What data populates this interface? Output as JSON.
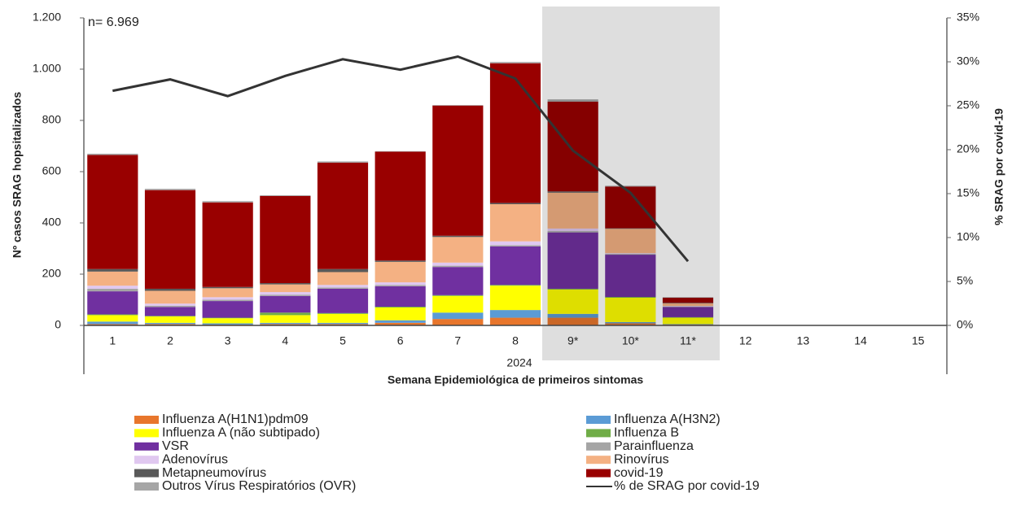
{
  "chart_data": {
    "type": "bar",
    "annotation": "n= 6.969",
    "categories": [
      "1",
      "2",
      "3",
      "4",
      "5",
      "6",
      "7",
      "8",
      "9*",
      "10*",
      "11*",
      "12",
      "13",
      "14",
      "15"
    ],
    "x_group_label": "2024",
    "x_label": "Semana Epidemiológica de primeiros sintomas",
    "y_label": "Nº casos SRAG hopsitalizados",
    "y2_label": "% SRAG por covid-19",
    "ylim": [
      0,
      1200
    ],
    "yticks": [
      0,
      200,
      400,
      600,
      800,
      {
        "value": 1000,
        "label": "1.000"
      },
      {
        "value": 1200,
        "label": "1.200"
      }
    ],
    "y2lim": [
      0,
      35
    ],
    "y2ticks": [
      {
        "value": 0,
        "label": "0%"
      },
      {
        "value": 5,
        "label": "5%"
      },
      {
        "value": 10,
        "label": "10%"
      },
      {
        "value": 15,
        "label": "15%"
      },
      {
        "value": 20,
        "label": "20%"
      },
      {
        "value": 25,
        "label": "25%"
      },
      {
        "value": 30,
        "label": "30%"
      },
      {
        "value": 35,
        "label": "35%"
      }
    ],
    "stacked": true,
    "series": [
      {
        "name": "Influenza A(H1N1)pdm09",
        "color": "#e8762c",
        "values": [
          5,
          5,
          3,
          5,
          5,
          10,
          25,
          30,
          30,
          8,
          3,
          null,
          null,
          null,
          null
        ]
      },
      {
        "name": "Influenza A(H3N2)",
        "color": "#5b9bd5",
        "values": [
          10,
          5,
          5,
          5,
          5,
          10,
          25,
          30,
          15,
          5,
          2,
          null,
          null,
          null,
          null
        ]
      },
      {
        "name": "Influenza A (não subtipado)",
        "color": "#ffff00",
        "values": [
          25,
          25,
          20,
          30,
          35,
          50,
          65,
          95,
          95,
          95,
          25,
          null,
          null,
          null,
          null
        ]
      },
      {
        "name": "Influenza B",
        "color": "#70ad47",
        "values": [
          3,
          2,
          2,
          10,
          3,
          3,
          3,
          3,
          3,
          3,
          2,
          null,
          null,
          null,
          null
        ]
      },
      {
        "name": "VSR",
        "color": "#7030a0",
        "values": [
          90,
          35,
          65,
          65,
          95,
          80,
          110,
          150,
          220,
          165,
          40,
          null,
          null,
          null,
          null
        ]
      },
      {
        "name": "Parainfluenza",
        "color": "#a5a5a5",
        "values": [
          10,
          5,
          5,
          5,
          5,
          5,
          5,
          5,
          5,
          3,
          2,
          null,
          null,
          null,
          null
        ]
      },
      {
        "name": "Adenovírus",
        "color": "#e0c8f0",
        "values": [
          12,
          8,
          10,
          10,
          10,
          10,
          12,
          15,
          10,
          3,
          2,
          null,
          null,
          null,
          null
        ]
      },
      {
        "name": "Rinovírus",
        "color": "#f4b183",
        "values": [
          55,
          50,
          35,
          30,
          50,
          80,
          100,
          145,
          140,
          95,
          10,
          null,
          null,
          null,
          null
        ]
      },
      {
        "name": "Metapneumovírus",
        "color": "#595959",
        "values": [
          10,
          8,
          5,
          5,
          12,
          5,
          5,
          5,
          5,
          2,
          2,
          null,
          null,
          null,
          null
        ]
      },
      {
        "name": "covid-19",
        "color": "#990000",
        "values": [
          445,
          385,
          330,
          340,
          415,
          425,
          508,
          545,
          350,
          163,
          20,
          null,
          null,
          null,
          null
        ]
      },
      {
        "name": "Outros Vírus Respiratórios (OVR)",
        "color": "#a6a6a6",
        "values": [
          5,
          5,
          5,
          3,
          5,
          2,
          2,
          5,
          9,
          3,
          2,
          null,
          null,
          null,
          null
        ]
      },
      {
        "name": "% de SRAG por covid-19",
        "type": "line",
        "axis": "y2",
        "color": "#333333",
        "values": [
          26.7,
          28.0,
          26.1,
          28.4,
          30.3,
          29.1,
          30.6,
          28.1,
          19.9,
          15.1,
          7.3,
          null,
          null,
          null,
          null
        ]
      }
    ]
  }
}
